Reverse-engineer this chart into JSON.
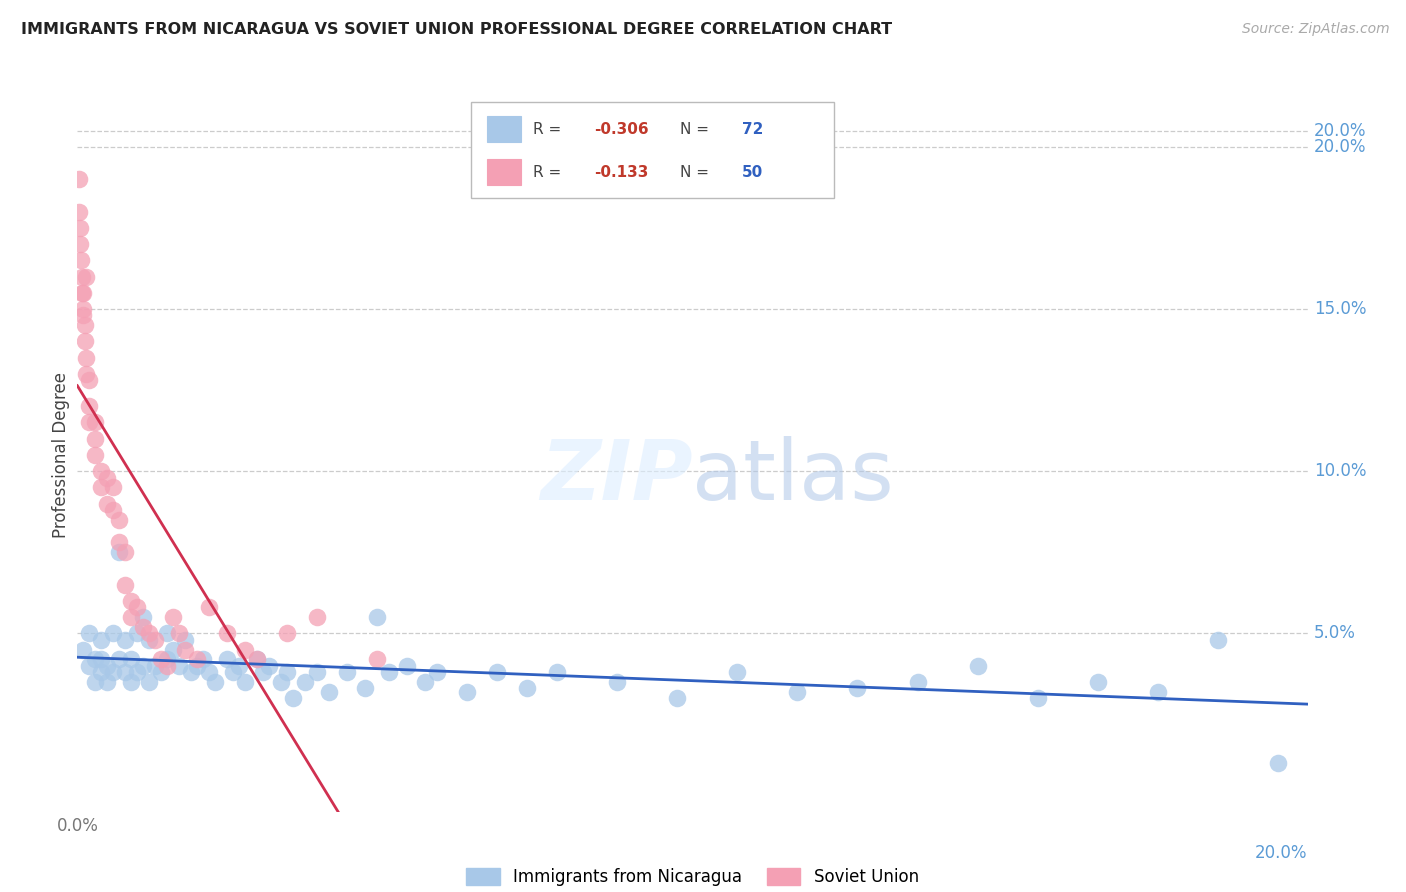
{
  "title": "IMMIGRANTS FROM NICARAGUA VS SOVIET UNION PROFESSIONAL DEGREE CORRELATION CHART",
  "source": "Source: ZipAtlas.com",
  "ylabel": "Professional Degree",
  "right_yticks": [
    "20.0%",
    "15.0%",
    "10.0%",
    "5.0%"
  ],
  "right_ytick_vals": [
    0.2,
    0.15,
    0.1,
    0.05
  ],
  "xlim": [
    0.0,
    0.205
  ],
  "ylim": [
    -0.005,
    0.215
  ],
  "nicaragua_R": -0.306,
  "nicaragua_N": 72,
  "soviet_R": -0.133,
  "soviet_N": 50,
  "nicaragua_color": "#a8c8e8",
  "soviet_color": "#f4a0b4",
  "nicaragua_line_color": "#3060c0",
  "soviet_line_color": "#d03050",
  "legend_label_nicaragua": "Immigrants from Nicaragua",
  "legend_label_soviet": "Soviet Union",
  "nicaragua_x": [
    0.001,
    0.002,
    0.002,
    0.003,
    0.003,
    0.004,
    0.004,
    0.004,
    0.005,
    0.005,
    0.006,
    0.006,
    0.007,
    0.007,
    0.008,
    0.008,
    0.009,
    0.009,
    0.01,
    0.01,
    0.011,
    0.011,
    0.012,
    0.012,
    0.013,
    0.014,
    0.015,
    0.015,
    0.016,
    0.017,
    0.018,
    0.019,
    0.02,
    0.021,
    0.022,
    0.023,
    0.025,
    0.026,
    0.027,
    0.028,
    0.03,
    0.031,
    0.032,
    0.034,
    0.035,
    0.036,
    0.038,
    0.04,
    0.042,
    0.045,
    0.048,
    0.05,
    0.052,
    0.055,
    0.058,
    0.06,
    0.065,
    0.07,
    0.075,
    0.08,
    0.09,
    0.1,
    0.11,
    0.12,
    0.13,
    0.14,
    0.15,
    0.16,
    0.17,
    0.18,
    0.19,
    0.2
  ],
  "nicaragua_y": [
    0.045,
    0.05,
    0.04,
    0.035,
    0.042,
    0.048,
    0.042,
    0.038,
    0.04,
    0.035,
    0.05,
    0.038,
    0.075,
    0.042,
    0.048,
    0.038,
    0.042,
    0.035,
    0.05,
    0.038,
    0.055,
    0.04,
    0.048,
    0.035,
    0.04,
    0.038,
    0.05,
    0.042,
    0.045,
    0.04,
    0.048,
    0.038,
    0.04,
    0.042,
    0.038,
    0.035,
    0.042,
    0.038,
    0.04,
    0.035,
    0.042,
    0.038,
    0.04,
    0.035,
    0.038,
    0.03,
    0.035,
    0.038,
    0.032,
    0.038,
    0.033,
    0.055,
    0.038,
    0.04,
    0.035,
    0.038,
    0.032,
    0.038,
    0.033,
    0.038,
    0.035,
    0.03,
    0.038,
    0.032,
    0.033,
    0.035,
    0.04,
    0.03,
    0.035,
    0.032,
    0.048,
    0.01
  ],
  "soviet_x": [
    0.0002,
    0.0003,
    0.0004,
    0.0005,
    0.0006,
    0.0007,
    0.0008,
    0.0009,
    0.001,
    0.001,
    0.0012,
    0.0013,
    0.0014,
    0.0015,
    0.0015,
    0.002,
    0.002,
    0.002,
    0.003,
    0.003,
    0.003,
    0.004,
    0.004,
    0.005,
    0.005,
    0.006,
    0.006,
    0.007,
    0.007,
    0.008,
    0.008,
    0.009,
    0.009,
    0.01,
    0.011,
    0.012,
    0.013,
    0.014,
    0.015,
    0.016,
    0.017,
    0.018,
    0.02,
    0.022,
    0.025,
    0.028,
    0.03,
    0.035,
    0.04,
    0.05
  ],
  "soviet_y": [
    0.19,
    0.18,
    0.175,
    0.17,
    0.165,
    0.16,
    0.155,
    0.15,
    0.148,
    0.155,
    0.145,
    0.14,
    0.135,
    0.13,
    0.16,
    0.128,
    0.12,
    0.115,
    0.11,
    0.105,
    0.115,
    0.1,
    0.095,
    0.098,
    0.09,
    0.095,
    0.088,
    0.085,
    0.078,
    0.075,
    0.065,
    0.06,
    0.055,
    0.058,
    0.052,
    0.05,
    0.048,
    0.042,
    0.04,
    0.055,
    0.05,
    0.045,
    0.042,
    0.058,
    0.05,
    0.045,
    0.042,
    0.05,
    0.055,
    0.042
  ]
}
